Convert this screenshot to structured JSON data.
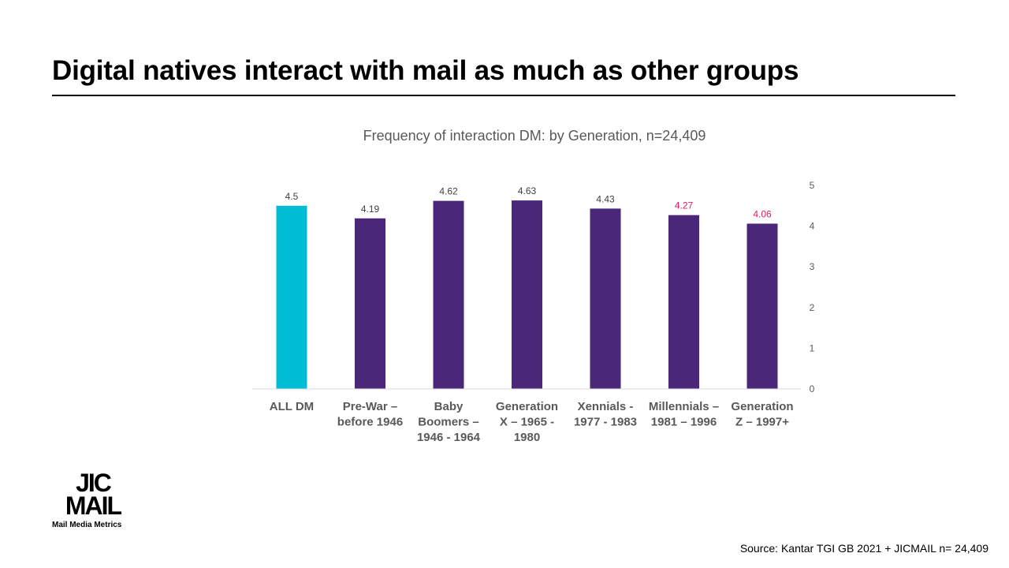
{
  "slide": {
    "title": "Digital natives interact with mail as much as other groups",
    "source": "Source:  Kantar TGI GB 2021 + JICMAIL  n= 24,409"
  },
  "logo": {
    "line1": "JIC",
    "line2": "MAIL",
    "tagline": "Mail Media Metrics"
  },
  "chart_data": {
    "type": "bar",
    "title": "Frequency of interaction DM:  by Generation,  n=24,409",
    "categories": [
      [
        "ALL DM"
      ],
      [
        "Pre-War –",
        "before 1946"
      ],
      [
        "Baby",
        "Boomers –",
        "1946 - 1964"
      ],
      [
        "Generation",
        "X – 1965 -",
        "1980"
      ],
      [
        "Xennials -",
        "1977 - 1983"
      ],
      [
        "Millennials –",
        "1981 – 1996"
      ],
      [
        "Generation",
        "Z – 1997+"
      ]
    ],
    "values": [
      4.5,
      4.19,
      4.62,
      4.63,
      4.43,
      4.27,
      4.06
    ],
    "value_labels": [
      "4.5",
      "4.19",
      "4.62",
      "4.63",
      "4.43",
      "4.27",
      "4.06"
    ],
    "bar_colors": [
      "#00BCD4",
      "#4A2779",
      "#4A2779",
      "#4A2779",
      "#4A2779",
      "#4A2779",
      "#4A2779"
    ],
    "label_colors": [
      "#404040",
      "#404040",
      "#404040",
      "#404040",
      "#404040",
      "#E8175D",
      "#E8175D"
    ],
    "ylim": [
      0,
      5
    ],
    "yticks": [
      "0",
      "1",
      "2",
      "3",
      "4",
      "5"
    ],
    "y_axis_position": "right",
    "grid": false,
    "xlabel": "",
    "ylabel": ""
  }
}
